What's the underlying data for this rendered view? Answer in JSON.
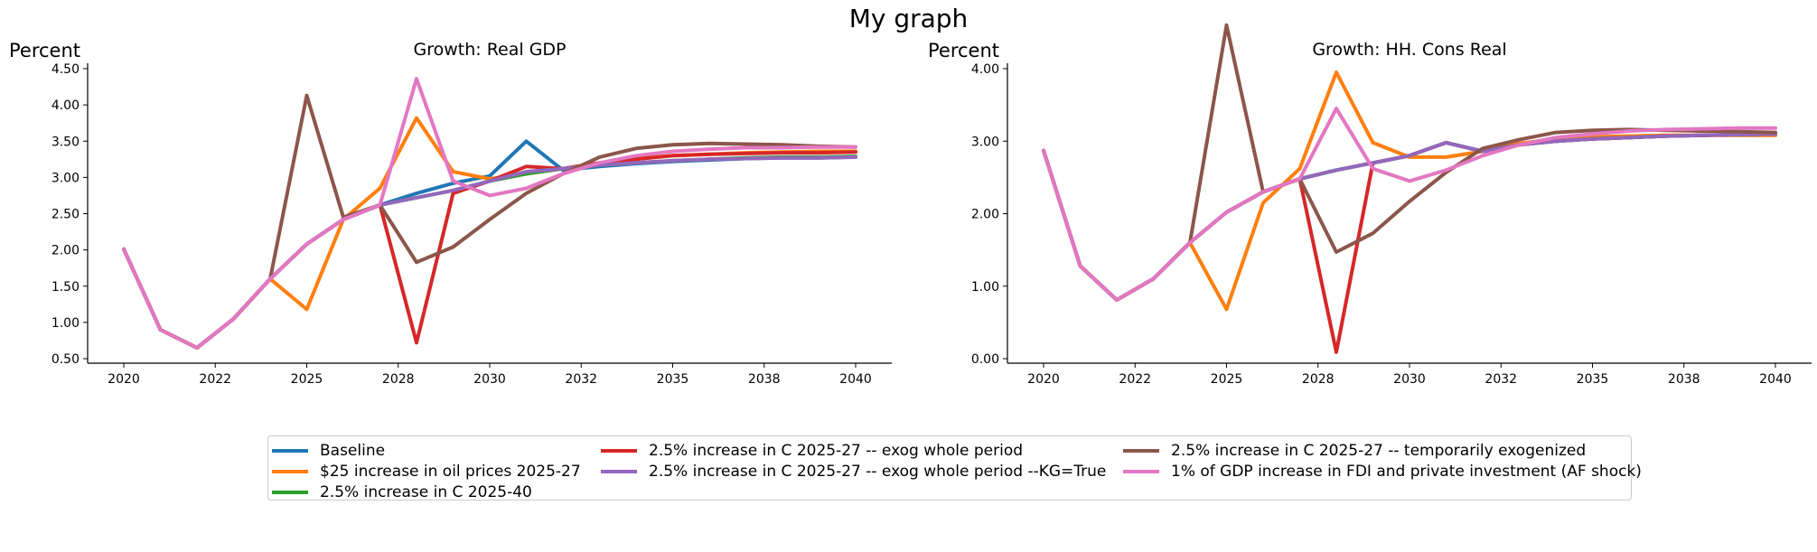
{
  "figure": {
    "title": "My graph"
  },
  "chart_data": [
    {
      "type": "line",
      "title": "Growth: Real GDP",
      "ylabel": "Percent",
      "xlabel": "",
      "ylim": [
        0.5,
        4.5
      ],
      "xlim": [
        2020,
        2040
      ],
      "yticks": [
        "0.50",
        "1.00",
        "1.50",
        "2.00",
        "2.50",
        "3.00",
        "3.50",
        "4.00",
        "4.50"
      ],
      "xticks": [
        "2020",
        "2022",
        "2025",
        "2028",
        "2030",
        "2032",
        "2035",
        "2038",
        "2040"
      ],
      "x": [
        2020,
        2021,
        2022,
        2023,
        2024,
        2025,
        2026,
        2027,
        2028,
        2029,
        2030,
        2031,
        2032,
        2033,
        2034,
        2035,
        2036,
        2037,
        2038,
        2039,
        2040
      ],
      "series": [
        {
          "name": "Baseline",
          "color": "#1f77b4",
          "values": [
            2.01,
            0.9,
            0.65,
            1.05,
            1.6,
            2.08,
            2.42,
            2.62,
            2.78,
            2.92,
            3.02,
            3.5,
            3.1,
            3.15,
            3.19,
            3.22,
            3.24,
            3.26,
            3.27,
            3.27,
            3.28
          ]
        },
        {
          "name": "$25 increase in oil prices 2025-27",
          "color": "#ff7f0e",
          "values": [
            2.01,
            0.9,
            0.65,
            1.05,
            1.6,
            1.18,
            2.42,
            2.85,
            3.82,
            3.08,
            2.98,
            3.05,
            3.12,
            3.2,
            3.26,
            3.3,
            3.32,
            3.34,
            3.35,
            3.36,
            3.36
          ]
        },
        {
          "name": "2.5% increase in C 2025-40",
          "color": "#2ca02c",
          "values": [
            2.01,
            0.9,
            0.65,
            1.05,
            1.6,
            2.08,
            2.42,
            2.62,
            2.72,
            2.82,
            2.95,
            3.05,
            3.12,
            3.17,
            3.2,
            3.23,
            3.25,
            3.27,
            3.28,
            3.28,
            3.29
          ]
        },
        {
          "name": "2.5% increase in C 2025-27 -- exog whole period",
          "color": "#d62728",
          "values": [
            2.01,
            0.9,
            0.65,
            1.05,
            1.6,
            2.08,
            2.42,
            2.62,
            0.72,
            2.78,
            2.95,
            3.15,
            3.12,
            3.2,
            3.25,
            3.3,
            3.32,
            3.33,
            3.34,
            3.34,
            3.35
          ]
        },
        {
          "name": "2.5% increase in C 2025-27 -- exog whole period --KG=True",
          "color": "#9467bd",
          "values": [
            2.01,
            0.9,
            0.65,
            1.05,
            1.6,
            2.08,
            2.42,
            2.62,
            2.72,
            2.82,
            2.95,
            3.08,
            3.12,
            3.17,
            3.2,
            3.23,
            3.25,
            3.26,
            3.27,
            3.27,
            3.28
          ]
        },
        {
          "name": "2.5% increase in C 2025-27 -- temporarily exogenized",
          "color": "#8c564b",
          "values": [
            2.01,
            0.9,
            0.65,
            1.05,
            1.6,
            4.13,
            2.45,
            2.62,
            1.83,
            2.04,
            2.42,
            2.78,
            3.05,
            3.28,
            3.4,
            3.45,
            3.47,
            3.46,
            3.45,
            3.43,
            3.42
          ]
        },
        {
          "name": "1% of GDP increase in FDI and private investment (AF shock)",
          "color": "#e377c2",
          "values": [
            2.01,
            0.9,
            0.65,
            1.05,
            1.6,
            2.08,
            2.42,
            2.62,
            4.36,
            2.95,
            2.75,
            2.85,
            3.05,
            3.2,
            3.3,
            3.36,
            3.39,
            3.41,
            3.41,
            3.42,
            3.42
          ]
        }
      ]
    },
    {
      "type": "line",
      "title": "Growth: HH. Cons Real",
      "ylabel": "Percent",
      "xlabel": "",
      "ylim": [
        0.0,
        4.0
      ],
      "xlim": [
        2020,
        2040
      ],
      "yticks": [
        "0.00",
        "1.00",
        "2.00",
        "3.00",
        "4.00"
      ],
      "xticks": [
        "2020",
        "2022",
        "2025",
        "2028",
        "2030",
        "2032",
        "2035",
        "2038",
        "2040"
      ],
      "x": [
        2020,
        2021,
        2022,
        2023,
        2024,
        2025,
        2026,
        2027,
        2028,
        2029,
        2030,
        2031,
        2032,
        2033,
        2034,
        2035,
        2036,
        2037,
        2038,
        2039,
        2040
      ],
      "series": [
        {
          "name": "Baseline",
          "color": "#1f77b4",
          "values": [
            2.87,
            1.28,
            0.81,
            1.1,
            1.6,
            2.02,
            2.3,
            2.48,
            2.6,
            2.7,
            2.8,
            2.98,
            2.86,
            2.95,
            3.0,
            3.03,
            3.05,
            3.07,
            3.08,
            3.09,
            3.1
          ]
        },
        {
          "name": "$25 increase in oil prices 2025-27",
          "color": "#ff7f0e",
          "values": [
            2.87,
            1.28,
            0.81,
            1.1,
            1.6,
            0.68,
            2.15,
            2.62,
            3.95,
            2.98,
            2.78,
            2.78,
            2.86,
            2.97,
            3.03,
            3.06,
            3.07,
            3.08,
            3.08,
            3.08,
            3.08
          ]
        },
        {
          "name": "2.5% increase in C 2025-40",
          "color": "#2ca02c",
          "values": [
            2.87,
            1.28,
            0.81,
            1.1,
            1.6,
            2.02,
            2.3,
            2.48,
            2.6,
            2.7,
            2.8,
            2.98,
            2.86,
            2.95,
            3.0,
            3.03,
            3.05,
            3.07,
            3.08,
            3.09,
            3.1
          ]
        },
        {
          "name": "2.5% increase in C 2025-27 -- exog whole period",
          "color": "#d62728",
          "values": [
            2.87,
            1.28,
            0.81,
            1.1,
            1.6,
            2.02,
            2.3,
            2.48,
            0.09,
            2.7,
            2.8,
            2.98,
            2.86,
            2.95,
            3.0,
            3.03,
            3.05,
            3.07,
            3.08,
            3.09,
            3.1
          ]
        },
        {
          "name": "2.5% increase in C 2025-27 -- exog whole period --KG=True",
          "color": "#9467bd",
          "values": [
            2.87,
            1.28,
            0.81,
            1.1,
            1.6,
            2.02,
            2.3,
            2.48,
            2.6,
            2.7,
            2.8,
            2.98,
            2.86,
            2.95,
            3.0,
            3.03,
            3.05,
            3.07,
            3.08,
            3.09,
            3.1
          ]
        },
        {
          "name": "2.5% increase in C 2025-27 -- temporarily exogenized",
          "color": "#8c564b",
          "values": [
            2.87,
            1.28,
            0.81,
            1.1,
            1.6,
            4.6,
            2.3,
            2.48,
            1.47,
            1.73,
            2.17,
            2.57,
            2.9,
            3.02,
            3.12,
            3.15,
            3.16,
            3.15,
            3.14,
            3.13,
            3.12
          ]
        },
        {
          "name": "1% of GDP increase in FDI and private investment (AF shock)",
          "color": "#e377c2",
          "values": [
            2.87,
            1.28,
            0.81,
            1.1,
            1.6,
            2.02,
            2.3,
            2.48,
            3.45,
            2.62,
            2.45,
            2.6,
            2.8,
            2.95,
            3.05,
            3.1,
            3.14,
            3.16,
            3.17,
            3.18,
            3.18
          ]
        }
      ]
    }
  ],
  "legend": {
    "placement": "bottom-center",
    "columns": [
      [
        {
          "label": "Baseline",
          "color": "#1f77b4"
        },
        {
          "label": "$25 increase in oil prices 2025-27",
          "color": "#ff7f0e"
        },
        {
          "label": "2.5% increase in C 2025-40",
          "color": "#2ca02c"
        }
      ],
      [
        {
          "label": "2.5% increase in C 2025-27 -- exog whole period",
          "color": "#d62728"
        },
        {
          "label": "2.5% increase in C 2025-27 -- exog whole period --KG=True",
          "color": "#9467bd"
        }
      ],
      [
        {
          "label": "2.5% increase in C 2025-27 -- temporarily exogenized",
          "color": "#8c564b"
        },
        {
          "label": "1% of GDP increase in FDI and private investment (AF shock)",
          "color": "#e377c2"
        }
      ]
    ]
  }
}
